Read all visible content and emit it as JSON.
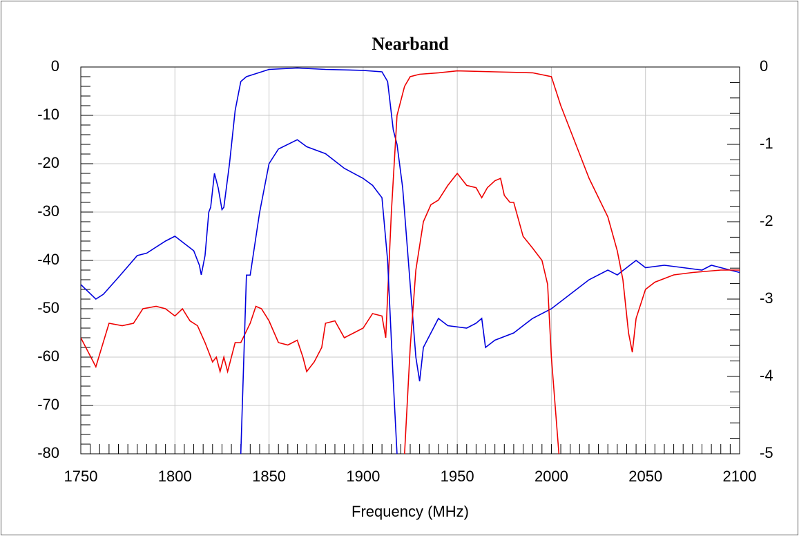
{
  "chart_data": {
    "type": "line",
    "title": "Nearband",
    "x_label": "Frequency (MHz)",
    "xlim": [
      1750,
      2100
    ],
    "xticks": [
      1750,
      1800,
      1850,
      1900,
      1950,
      2000,
      2050,
      2100
    ],
    "ylim": [
      -80,
      0
    ],
    "yticks": [
      0,
      -10,
      -20,
      -30,
      -40,
      -50,
      -60,
      -70,
      -80
    ],
    "y2lim": [
      -5,
      0
    ],
    "y2ticks": [
      0,
      -1,
      -2,
      -3,
      -4,
      -5
    ],
    "x_minor_step": 5,
    "y_minor_step": 2,
    "y2_minor_step": 0.2,
    "grid": true,
    "series": [
      {
        "color": "#0000dd",
        "x": [
          1750,
          1758,
          1762,
          1770,
          1780,
          1785,
          1795,
          1800,
          1805,
          1810,
          1813,
          1814,
          1816,
          1818,
          1819,
          1821,
          1823,
          1825,
          1826,
          1829,
          1832,
          1835,
          1838,
          1842,
          1850,
          1865,
          1880,
          1900,
          1910,
          1913,
          1916,
          1918,
          1921,
          1925,
          1928,
          1930,
          1932,
          1940,
          1945,
          1955,
          1960,
          1963,
          1965,
          1970,
          1980,
          1990,
          2000,
          2010,
          2020,
          2030,
          2035,
          2040,
          2045,
          2050,
          2060,
          2070,
          2080,
          2085,
          2095,
          2100
        ],
        "values": [
          -45,
          -48,
          -47,
          -43.5,
          -39,
          -38.5,
          -36,
          -35,
          -36.5,
          -38,
          -41,
          -43,
          -39,
          -30,
          -29,
          -22,
          -25,
          -29.5,
          -29,
          -20,
          -9,
          -3,
          -2,
          -1.5,
          -0.5,
          -0.2,
          -0.5,
          -0.7,
          -1,
          -3,
          -13,
          -16,
          -25,
          -45,
          -60,
          -65,
          -58,
          -52,
          -53.5,
          -54,
          -53,
          -52,
          -58,
          -56.5,
          -55,
          -52,
          -50,
          -47,
          -44,
          -42,
          -43,
          -41.5,
          -40,
          -41.5,
          -41,
          -41.5,
          -42,
          -41,
          -42,
          -42.5
        ]
      },
      {
        "color": "#ee0000",
        "x": [
          1750,
          1758,
          1765,
          1772,
          1778,
          1783,
          1790,
          1795,
          1800,
          1804,
          1808,
          1812,
          1816,
          1820,
          1822,
          1824,
          1826,
          1828,
          1832,
          1835,
          1840,
          1843,
          1846,
          1850,
          1855,
          1860,
          1865,
          1868,
          1870,
          1874,
          1878,
          1880,
          1885,
          1890,
          1895,
          1900,
          1905,
          1910,
          1912,
          1915,
          1918,
          1922,
          1925,
          1930,
          1940,
          1950,
          1970,
          1990,
          2000,
          2005,
          2010,
          2020,
          2030,
          2035,
          2038,
          2041,
          2043,
          2045,
          2050,
          2055,
          2065,
          2075,
          2090,
          2100
        ],
        "values": [
          -56,
          -62,
          -53,
          -53.5,
          -53,
          -50,
          -49.5,
          -50,
          -51.5,
          -50,
          -52.5,
          -53.5,
          -57,
          -61,
          -60,
          -63,
          -60,
          -63,
          -57,
          -57,
          -53,
          -49.5,
          -50,
          -52.5,
          -57,
          -57.5,
          -56.5,
          -60,
          -63,
          -61,
          -58,
          -53,
          -52.5,
          -56,
          -55,
          -54,
          -51,
          -51.5,
          -56,
          -30,
          -10,
          -4,
          -2,
          -1.5,
          -1.2,
          -0.8,
          -1,
          -1.2,
          -2,
          -8,
          -13,
          -23,
          -31,
          -38,
          -44,
          -55,
          -59,
          -52,
          -46,
          -44.5,
          -43,
          -42.5,
          -42,
          -42
        ]
      },
      {
        "color": "#0000dd",
        "axis": "y2",
        "x": [
          1835,
          1838,
          1840,
          1845,
          1850,
          1855,
          1865,
          1870,
          1880,
          1890,
          1900,
          1905,
          1910,
          1913,
          1916,
          1918
        ],
        "values": [
          -5,
          -2.69,
          -2.69,
          -1.88,
          -1.25,
          -1.06,
          -0.94,
          -1.03,
          -1.12,
          -1.31,
          -1.44,
          -1.53,
          -1.69,
          -2.5,
          -4.06,
          -5
        ]
      },
      {
        "color": "#ee0000",
        "axis": "y2",
        "x": [
          1922,
          1925,
          1928,
          1932,
          1936,
          1940,
          1945,
          1950,
          1955,
          1960,
          1963,
          1966,
          1970,
          1973,
          1975,
          1978,
          1980,
          1985,
          1990,
          1995,
          1998,
          2000,
          2004
        ],
        "values": [
          -5,
          -3.625,
          -2.625,
          -2,
          -1.78,
          -1.72,
          -1.53,
          -1.375,
          -1.53,
          -1.56,
          -1.69,
          -1.56,
          -1.47,
          -1.44,
          -1.66,
          -1.75,
          -1.75,
          -2.19,
          -2.34,
          -2.5,
          -2.81,
          -3.75,
          -5
        ]
      }
    ]
  }
}
